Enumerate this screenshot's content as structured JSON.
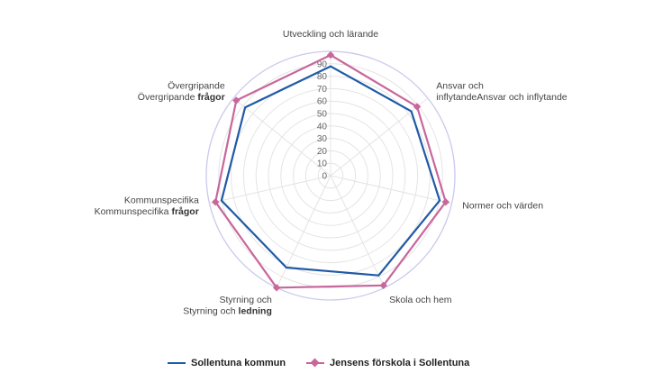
{
  "chart_data": {
    "type": "radar",
    "title": "",
    "categories": [
      [
        "Utveckling och lärande"
      ],
      [
        "Ansvar och",
        "inflytandeAnsvar och inflytande"
      ],
      [
        "Normer och värden"
      ],
      [
        "Skola och hem"
      ],
      [
        "Styrning och",
        "Styrning och ledning"
      ],
      [
        "Kommunspecifika",
        "Kommunspecifika frågor"
      ],
      [
        "Övergripande",
        "Övergripande frågor"
      ]
    ],
    "ticks": [
      "0",
      "10",
      "20",
      "30",
      "40",
      "50",
      "60",
      "70",
      "80",
      "90"
    ],
    "rlim": [
      0,
      100
    ],
    "legend_position": "bottom",
    "series": [
      {
        "name": "Sollentuna kommun",
        "color": "#1f5aa6",
        "marker": "none",
        "values": [
          88,
          83,
          90,
          89,
          82,
          90,
          88
        ]
      },
      {
        "name": "Jensens förskola i Sollentuna",
        "color": "#c8679c",
        "marker": "diamond",
        "values": [
          97,
          89,
          95,
          98,
          100,
          95,
          97
        ]
      }
    ]
  }
}
